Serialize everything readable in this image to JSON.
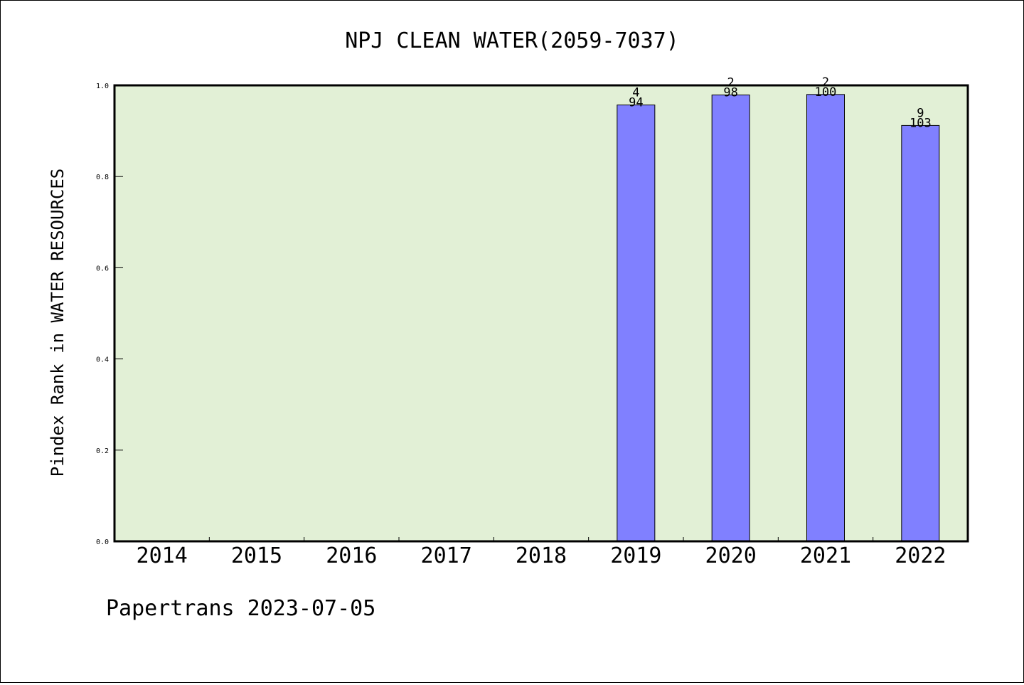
{
  "chart_data": {
    "type": "bar",
    "title": "NPJ CLEAN WATER(2059-7037)",
    "xlabel": "",
    "ylabel": "Pindex Rank in WATER RESOURCES",
    "ylim": [
      0,
      1.0
    ],
    "yticks": [
      "0.0",
      "0.2",
      "0.4",
      "0.6",
      "0.8",
      "1.0"
    ],
    "categories": [
      "2014",
      "2015",
      "2016",
      "2017",
      "2018",
      "2019",
      "2020",
      "2021",
      "2022"
    ],
    "values": [
      null,
      null,
      null,
      null,
      null,
      0.957,
      0.979,
      0.98,
      0.912
    ],
    "bar_labels": [
      null,
      null,
      null,
      null,
      null,
      {
        "rank": "4",
        "total": "94"
      },
      {
        "rank": "2",
        "total": "98"
      },
      {
        "rank": "2",
        "total": "100"
      },
      {
        "rank": "9",
        "total": "103"
      }
    ],
    "grid": false,
    "legend": "none",
    "colors": {
      "plot_background": "#e2f0d6",
      "bar_fill": "#8080ff",
      "bar_stroke": "#000000"
    }
  },
  "footer": {
    "text": "Papertrans 2023-07-05"
  }
}
